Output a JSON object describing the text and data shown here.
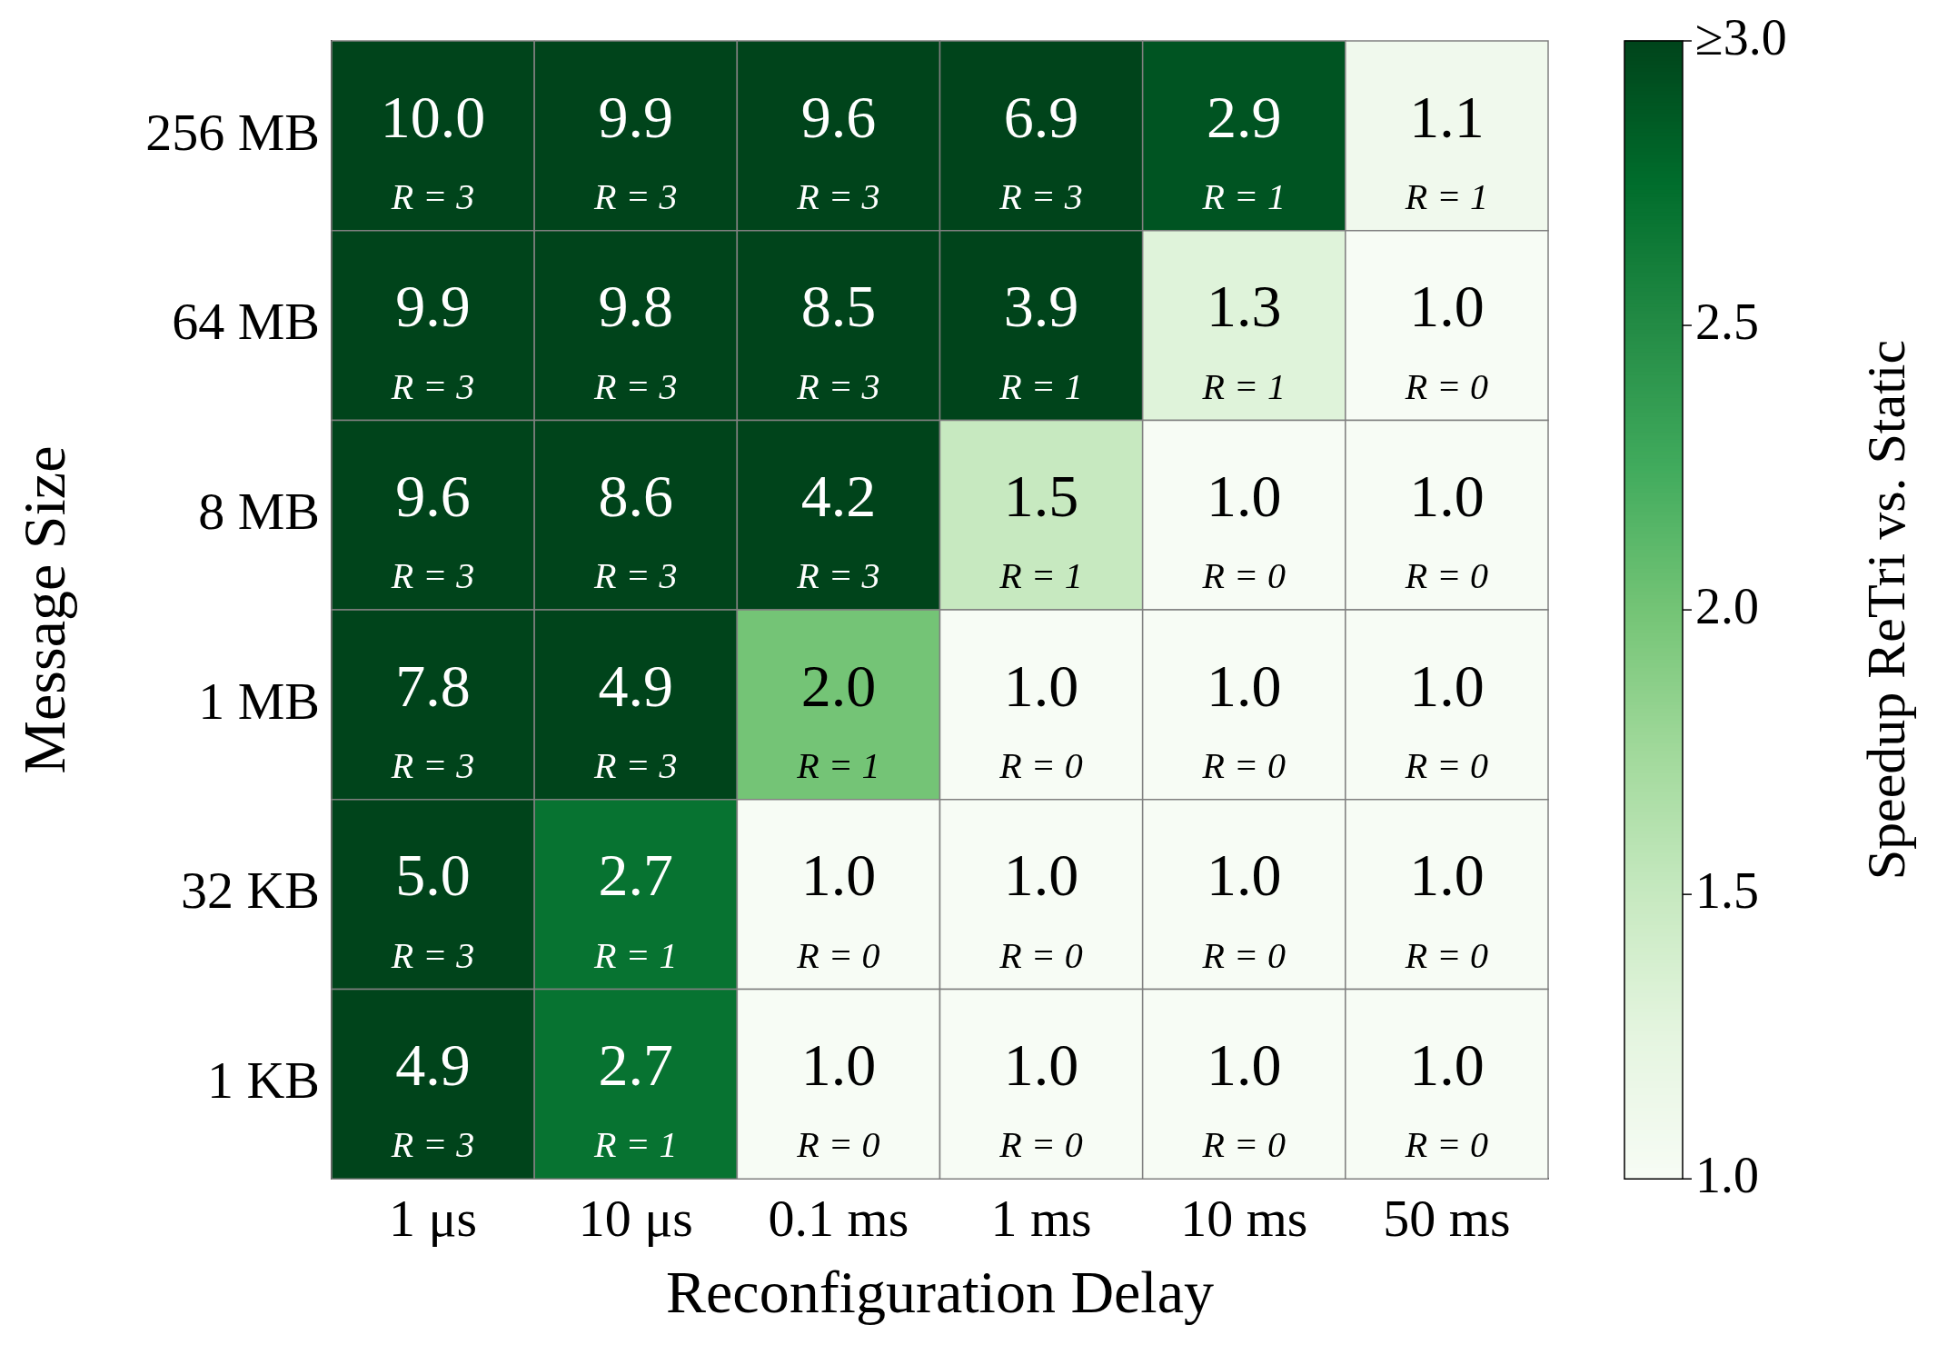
{
  "chart_data": {
    "type": "heatmap",
    "xlabel": "Reconfiguration Delay",
    "ylabel": "Message Size",
    "clabel": "Speedup ReTri vs. Static",
    "categories": [
      "1 μs",
      "10 μs",
      "0.1 ms",
      "1 ms",
      "10 ms",
      "50 ms"
    ],
    "y_categories": [
      "256 MB",
      "64 MB",
      "8 MB",
      "1 MB",
      "32 KB",
      "1 KB"
    ],
    "cells": [
      [
        10.0,
        9.9,
        9.6,
        6.9,
        2.9,
        1.1
      ],
      [
        9.9,
        9.8,
        8.5,
        3.9,
        1.3,
        1.0
      ],
      [
        9.6,
        8.6,
        4.2,
        1.5,
        1.0,
        1.0
      ],
      [
        7.8,
        4.9,
        2.0,
        1.0,
        1.0,
        1.0
      ],
      [
        5.0,
        2.7,
        1.0,
        1.0,
        1.0,
        1.0
      ],
      [
        4.9,
        2.7,
        1.0,
        1.0,
        1.0,
        1.0
      ]
    ],
    "cell_labels": [
      [
        "10.0\nR = 3",
        "9.9\nR = 3",
        "9.6\nR = 3",
        "6.9\nR = 3",
        "2.9\nR = 1",
        "1.1\nR = 1"
      ],
      [
        "9.9\nR = 3",
        "9.8\nR = 3",
        "8.5\nR = 3",
        "3.9\nR = 1",
        "1.3\nR = 1",
        "1.0\nR = 0"
      ],
      [
        "9.6\nR = 3",
        "8.6\nR = 3",
        "4.2\nR = 3",
        "1.5\nR = 1",
        "1.0\nR = 0",
        "1.0\nR = 0"
      ],
      [
        "7.8\nR = 3",
        "4.9\nR = 3",
        "2.0\nR = 1",
        "1.0\nR = 0",
        "1.0\nR = 0",
        "1.0\nR = 0"
      ],
      [
        "5.0\nR = 3",
        "2.7\nR = 1",
        "1.0\nR = 0",
        "1.0\nR = 0",
        "1.0\nR = 0",
        "1.0\nR = 0"
      ],
      [
        "4.9\nR = 3",
        "2.7\nR = 1",
        "1.0\nR = 0",
        "1.0\nR = 0",
        "1.0\nR = 0",
        "1.0\nR = 0"
      ]
    ],
    "clim": [
      1,
      3
    ],
    "cticks": [
      {
        "value": 1,
        "label": "1.0"
      },
      {
        "value": 1.5,
        "label": "1.5"
      },
      {
        "value": 2,
        "label": "2.0"
      },
      {
        "value": 2.5,
        "label": "2.5"
      },
      {
        "value": 3,
        "label": "≥3.0"
      }
    ]
  }
}
